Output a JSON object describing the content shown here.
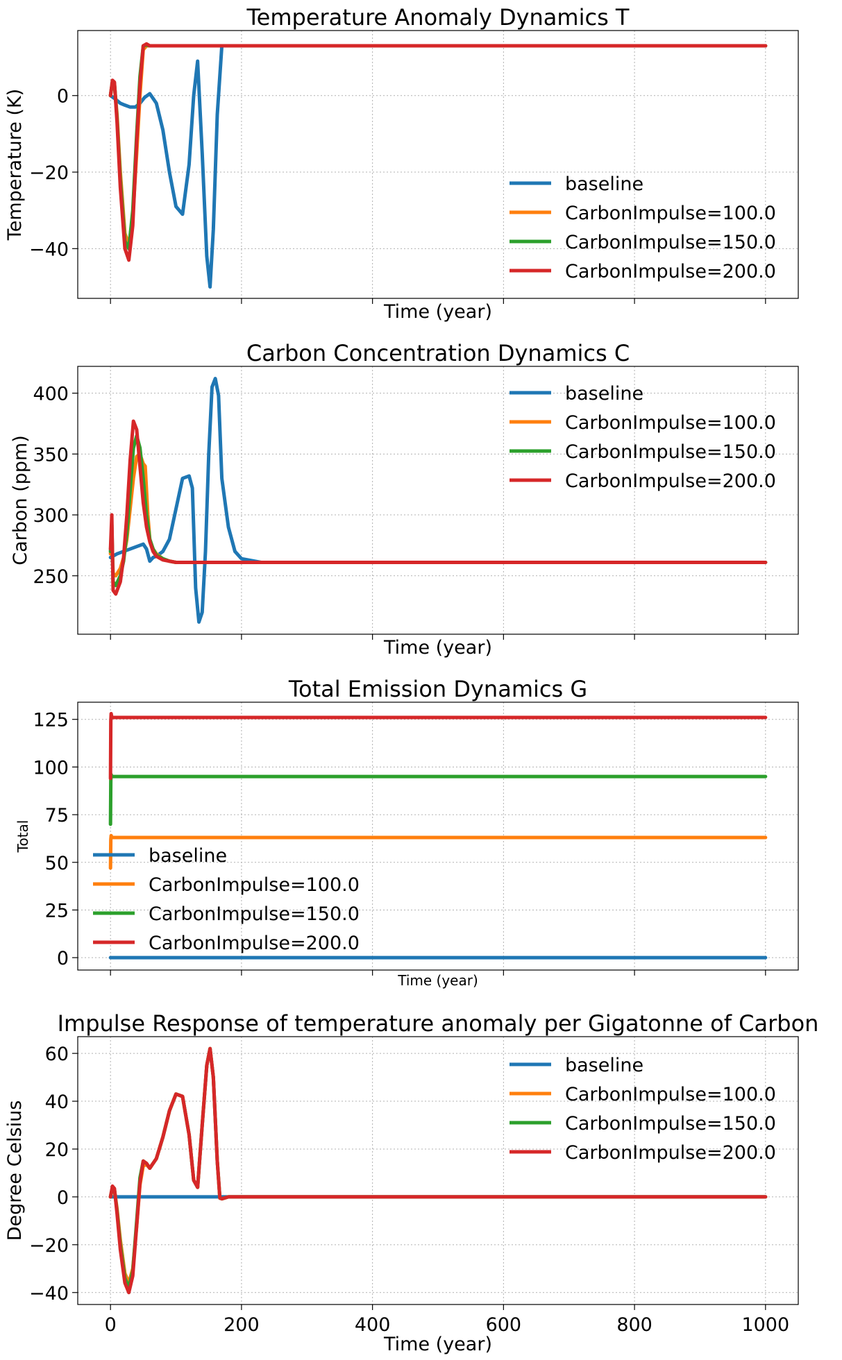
{
  "legend_names": [
    "baseline",
    "CarbonImpulse=100.0",
    "CarbonImpulse=150.0",
    "CarbonImpulse=200.0"
  ],
  "colors": {
    "baseline": "#1f77b4",
    "CarbonImpulse=100.0": "#ff7f0e",
    "CarbonImpulse=150.0": "#2ca02c",
    "CarbonImpulse=200.0": "#d62728",
    "grid": "#b0b0b0",
    "axes": "#000000"
  },
  "chart_data": [
    {
      "type": "line",
      "title": "Temperature Anomaly Dynamics T",
      "xlabel": "Time (year)",
      "ylabel": "Temperature (K)",
      "xlim": [
        -50,
        1050
      ],
      "ylim": [
        -53,
        17
      ],
      "xticks": [
        0,
        200,
        400,
        600,
        800,
        1000
      ],
      "show_xticklabels": false,
      "yticks": [
        -40,
        -20,
        0
      ],
      "yticklabels": [
        "−40",
        "−20",
        "0"
      ],
      "grid": true,
      "legend_position": "lower-right",
      "series": [
        {
          "name": "baseline",
          "x": [
            0,
            8,
            15,
            22,
            30,
            38,
            45,
            52,
            60,
            70,
            80,
            90,
            100,
            110,
            120,
            127,
            133,
            140,
            147,
            152,
            157,
            163,
            170,
            180,
            200,
            300,
            500,
            700,
            900,
            1000
          ],
          "y": [
            0,
            -1,
            -2,
            -2.5,
            -3,
            -3,
            -2,
            -0.5,
            0.5,
            -2,
            -9,
            -20,
            -29,
            -31,
            -18,
            0,
            9,
            -15,
            -42,
            -50,
            -35,
            -5,
            13,
            13,
            13,
            13,
            13,
            13,
            13,
            13
          ]
        },
        {
          "name": "CarbonImpulse=100.0",
          "x": [
            0,
            3,
            6,
            10,
            15,
            22,
            28,
            34,
            40,
            45,
            50,
            55,
            60,
            70,
            100,
            300,
            600,
            1000
          ],
          "y": [
            0,
            3.5,
            3,
            -5,
            -20,
            -36,
            -39,
            -32,
            -15,
            0,
            12,
            13,
            13,
            13,
            13,
            13,
            13,
            13
          ]
        },
        {
          "name": "CarbonImpulse=150.0",
          "x": [
            0,
            3,
            6,
            10,
            15,
            22,
            28,
            34,
            40,
            45,
            50,
            55,
            60,
            70,
            100,
            300,
            600,
            1000
          ],
          "y": [
            0,
            3.8,
            3.2,
            -6,
            -22,
            -38,
            -40,
            -30,
            -10,
            5,
            13,
            13.2,
            13,
            13,
            13,
            13,
            13,
            13
          ]
        },
        {
          "name": "CarbonImpulse=200.0",
          "x": [
            0,
            3,
            6,
            10,
            15,
            22,
            28,
            34,
            40,
            45,
            50,
            55,
            60,
            70,
            100,
            300,
            600,
            1000
          ],
          "y": [
            0,
            4,
            3.5,
            -7,
            -24,
            -40,
            -43,
            -34,
            -12,
            3,
            13,
            13.5,
            13,
            13,
            13,
            13,
            13,
            13
          ]
        }
      ]
    },
    {
      "type": "line",
      "title": "Carbon Concentration Dynamics C",
      "xlabel": "Time (year)",
      "ylabel": "Carbon (ppm)",
      "xlim": [
        -50,
        1050
      ],
      "ylim": [
        202,
        422
      ],
      "xticks": [
        0,
        200,
        400,
        600,
        800,
        1000
      ],
      "show_xticklabels": false,
      "yticks": [
        250,
        300,
        350,
        400
      ],
      "yticklabels": [
        "250",
        "300",
        "350",
        "400"
      ],
      "grid": true,
      "legend_position": "upper-right",
      "series": [
        {
          "name": "baseline",
          "x": [
            0,
            10,
            20,
            30,
            40,
            50,
            55,
            60,
            65,
            70,
            80,
            90,
            100,
            110,
            120,
            125,
            130,
            135,
            140,
            145,
            150,
            155,
            160,
            165,
            170,
            180,
            190,
            200,
            230,
            300,
            500,
            700,
            1000
          ],
          "y": [
            265,
            268,
            270,
            272,
            274,
            276,
            272,
            262,
            265,
            266,
            270,
            280,
            305,
            330,
            332,
            322,
            240,
            212,
            220,
            270,
            350,
            405,
            412,
            398,
            330,
            290,
            270,
            264,
            261,
            261,
            261,
            261,
            261
          ]
        },
        {
          "name": "CarbonImpulse=100.0",
          "x": [
            0,
            2,
            4,
            8,
            15,
            20,
            25,
            30,
            35,
            40,
            45,
            50,
            53,
            57,
            60,
            65,
            70,
            80,
            90,
            100,
            120,
            150,
            200,
            400,
            700,
            1000
          ],
          "y": [
            268,
            285,
            252,
            250,
            256,
            265,
            280,
            305,
            330,
            348,
            350,
            342,
            340,
            300,
            280,
            272,
            268,
            264,
            262,
            261,
            261,
            261,
            261,
            261,
            261,
            261
          ]
        },
        {
          "name": "CarbonImpulse=150.0",
          "x": [
            0,
            2,
            4,
            8,
            15,
            20,
            25,
            30,
            35,
            40,
            45,
            50,
            55,
            60,
            65,
            70,
            80,
            90,
            100,
            120,
            150,
            200,
            400,
            700,
            1000
          ],
          "y": [
            270,
            292,
            245,
            242,
            250,
            262,
            285,
            320,
            355,
            365,
            355,
            330,
            300,
            280,
            272,
            267,
            264,
            262,
            261,
            261,
            261,
            261,
            261,
            261,
            261
          ]
        },
        {
          "name": "CarbonImpulse=200.0",
          "x": [
            0,
            2,
            4,
            8,
            15,
            20,
            25,
            30,
            35,
            40,
            45,
            50,
            55,
            60,
            65,
            70,
            80,
            90,
            100,
            120,
            150,
            200,
            400,
            700,
            1000
          ],
          "y": [
            272,
            300,
            238,
            235,
            245,
            265,
            300,
            345,
            377,
            370,
            340,
            310,
            290,
            278,
            270,
            266,
            263,
            262,
            261,
            261,
            261,
            261,
            261,
            261,
            261
          ]
        }
      ]
    },
    {
      "type": "line",
      "title": "Total Emission Dynamics G",
      "xlabel": "Time (year)",
      "ylabel": "Total",
      "xlim": [
        -50,
        1050
      ],
      "ylim": [
        -6.5,
        134
      ],
      "xticks": [
        0,
        200,
        400,
        600,
        800,
        1000
      ],
      "show_xticklabels": false,
      "yticks": [
        0,
        25,
        50,
        75,
        100,
        125
      ],
      "yticklabels": [
        "0",
        "25",
        "50",
        "75",
        "100",
        "125"
      ],
      "grid": true,
      "legend_position": "lower-left",
      "series": [
        {
          "name": "baseline",
          "x": [
            0,
            1000
          ],
          "y": [
            0,
            0
          ]
        },
        {
          "name": "CarbonImpulse=100.0",
          "x": [
            0,
            0.5,
            1,
            2,
            3,
            1000
          ],
          "y": [
            47,
            62,
            64,
            63,
            63,
            63
          ]
        },
        {
          "name": "CarbonImpulse=150.0",
          "x": [
            0,
            0.5,
            1,
            2,
            3,
            1000
          ],
          "y": [
            70,
            93,
            96,
            95,
            95,
            95
          ]
        },
        {
          "name": "CarbonImpulse=200.0",
          "x": [
            0,
            0.5,
            1,
            2,
            3,
            1000
          ],
          "y": [
            94,
            124,
            128,
            126,
            126,
            126
          ]
        }
      ]
    },
    {
      "type": "line",
      "title": "Impulse Response of temperature anomaly per Gigatonne of Carbon",
      "xlabel": "Time (year)",
      "ylabel": "Degree Celsius",
      "xlim": [
        -50,
        1050
      ],
      "ylim": [
        -45,
        67
      ],
      "xticks": [
        0,
        200,
        400,
        600,
        800,
        1000
      ],
      "xticklabels": [
        "0",
        "200",
        "400",
        "600",
        "800",
        "1000"
      ],
      "show_xticklabels": true,
      "yticks": [
        -40,
        -20,
        0,
        20,
        40,
        60
      ],
      "yticklabels": [
        "−40",
        "−20",
        "0",
        "20",
        "40",
        "60"
      ],
      "grid": true,
      "legend_position": "upper-right",
      "series": [
        {
          "name": "baseline",
          "x": [
            0,
            1000
          ],
          "y": [
            0,
            0
          ]
        },
        {
          "name": "CarbonImpulse=100.0",
          "x": [
            0,
            3,
            6,
            10,
            15,
            22,
            28,
            34,
            40,
            45,
            50,
            55,
            60,
            70,
            80,
            90,
            100,
            110,
            120,
            127,
            133,
            140,
            147,
            152,
            157,
            163,
            167,
            170,
            180,
            200,
            300,
            1000
          ],
          "y": [
            0,
            3.5,
            3,
            -5,
            -18,
            -32,
            -36,
            -30,
            -12,
            5,
            13,
            13.5,
            12,
            16,
            25,
            36,
            43,
            42,
            26,
            7,
            4,
            30,
            55,
            62,
            50,
            15,
            -0.5,
            -0.8,
            0,
            0,
            0,
            0
          ]
        },
        {
          "name": "CarbonImpulse=150.0",
          "x": [
            0,
            3,
            6,
            10,
            15,
            22,
            28,
            34,
            40,
            45,
            50,
            55,
            60,
            70,
            80,
            90,
            100,
            110,
            120,
            127,
            133,
            140,
            147,
            152,
            157,
            163,
            167,
            170,
            180,
            200,
            300,
            1000
          ],
          "y": [
            0,
            4,
            3.2,
            -6,
            -20,
            -34,
            -38,
            -31,
            -10,
            8,
            15,
            14,
            12,
            16,
            25,
            36,
            43,
            42,
            26,
            7,
            4,
            30,
            55,
            62,
            50,
            15,
            -0.5,
            -0.8,
            0,
            0,
            0,
            0
          ]
        },
        {
          "name": "CarbonImpulse=200.0",
          "x": [
            0,
            3,
            6,
            10,
            15,
            22,
            28,
            34,
            40,
            45,
            50,
            55,
            60,
            70,
            80,
            90,
            100,
            110,
            120,
            127,
            133,
            140,
            147,
            152,
            157,
            163,
            167,
            170,
            180,
            200,
            300,
            1000
          ],
          "y": [
            0,
            4.5,
            3.5,
            -7,
            -22,
            -36,
            -40,
            -33,
            -12,
            6,
            15,
            14,
            12,
            16,
            25,
            36,
            43,
            42,
            26,
            7,
            4,
            30,
            55,
            62,
            50,
            15,
            -0.5,
            -0.8,
            0,
            0,
            0,
            0
          ]
        }
      ]
    }
  ]
}
